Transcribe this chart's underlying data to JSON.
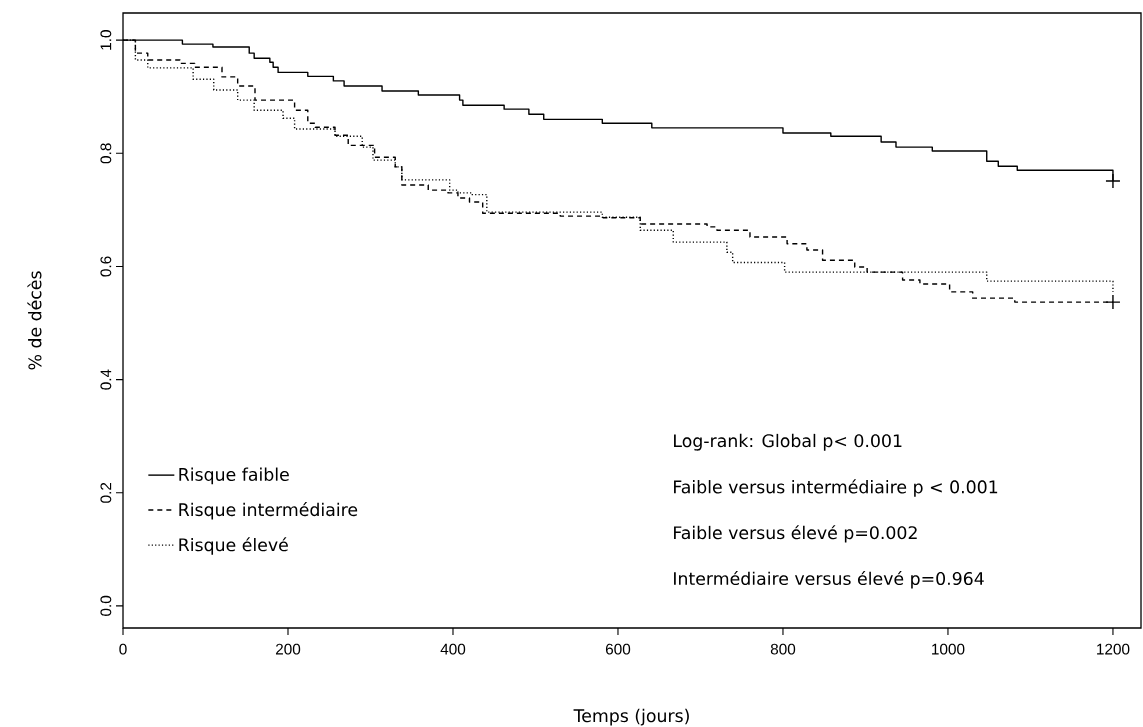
{
  "chart_data": {
    "type": "step",
    "xlabel": "Temps (jours)",
    "ylabel": "% de décès",
    "xlim": [
      0,
      1234
    ],
    "ylim": [
      -0.039,
      1.048
    ],
    "xticks": [
      0,
      200,
      400,
      600,
      800,
      1000,
      1200
    ],
    "yticks": [
      {
        "value": 0,
        "label": "0.0"
      },
      0.2,
      0.4,
      0.6,
      0.8,
      {
        "value": 1,
        "label": "1.0"
      }
    ],
    "grid": false,
    "legend": "bottom left",
    "series": [
      {
        "name": "Risque faible",
        "color": "#000000",
        "line_style": "solid",
        "x": [
          0,
          72,
          109,
          153,
          159,
          178,
          182,
          188,
          224,
          255,
          268,
          314,
          358,
          408,
          412,
          462,
          492,
          510,
          581,
          641,
          800,
          858,
          919,
          937,
          981,
          1047,
          1061,
          1084,
          1200
        ],
        "values": [
          1.0,
          0.993,
          0.988,
          0.977,
          0.968,
          0.961,
          0.952,
          0.943,
          0.936,
          0.928,
          0.919,
          0.91,
          0.903,
          0.894,
          0.885,
          0.878,
          0.869,
          0.86,
          0.853,
          0.845,
          0.836,
          0.83,
          0.82,
          0.811,
          0.804,
          0.786,
          0.777,
          0.77,
          0.751
        ]
      },
      {
        "name": "Risque intermédiaire",
        "color": "#000000",
        "line_style": "dashed",
        "x": [
          0,
          15,
          30,
          69,
          87,
          120,
          139,
          160,
          208,
          224,
          233,
          257,
          273,
          305,
          330,
          338,
          370,
          394,
          406,
          420,
          436,
          530,
          582,
          627,
          708,
          720,
          760,
          805,
          829,
          848,
          887,
          902,
          945,
          966,
          1002,
          1030,
          1081,
          1200
        ],
        "values": [
          1.0,
          0.977,
          0.965,
          0.959,
          0.952,
          0.935,
          0.919,
          0.894,
          0.876,
          0.853,
          0.846,
          0.832,
          0.814,
          0.793,
          0.776,
          0.744,
          0.735,
          0.73,
          0.721,
          0.714,
          0.694,
          0.689,
          0.686,
          0.675,
          0.67,
          0.664,
          0.652,
          0.64,
          0.629,
          0.611,
          0.599,
          0.59,
          0.576,
          0.569,
          0.555,
          0.544,
          0.537,
          0.537
        ]
      },
      {
        "name": "Risque élevé",
        "color": "#000000",
        "line_style": "dotted",
        "x": [
          0,
          15,
          30,
          85,
          110,
          139,
          159,
          194,
          208,
          257,
          290,
          303,
          330,
          338,
          396,
          406,
          423,
          441,
          581,
          627,
          667,
          732,
          739,
          802,
          1047,
          1200
        ],
        "values": [
          1.0,
          0.965,
          0.951,
          0.931,
          0.912,
          0.894,
          0.876,
          0.862,
          0.843,
          0.83,
          0.811,
          0.788,
          0.776,
          0.753,
          0.735,
          0.73,
          0.727,
          0.696,
          0.687,
          0.664,
          0.643,
          0.625,
          0.607,
          0.59,
          0.574,
          0.555
        ]
      },
      {
        "type": "scatter",
        "color": "#000000",
        "marker": "cross",
        "x": [
          1200,
          1200
        ],
        "values": [
          0.751,
          0.537
        ]
      }
    ],
    "annotations": [
      "Log-rank: Global p< 0.001",
      "Faible versus intermédiaire p < 0.001",
      "Faible versus élevé p=0.002",
      "Intermédiaire versus élevé p=0.964"
    ]
  }
}
